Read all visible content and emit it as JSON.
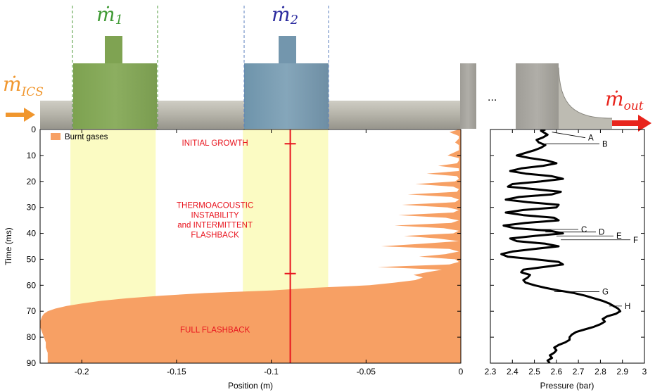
{
  "header": {
    "inlet_label": "ṁ",
    "inlet_sub": "ICS",
    "injector1_label": "ṁ",
    "injector1_sub": "1",
    "injector2_label": "ṁ",
    "injector2_sub": "2",
    "outlet_label": "ṁ",
    "outlet_sub": "out",
    "ellipsis": "...",
    "colors": {
      "inlet": "#f0962d",
      "injector1": "#3f9a34",
      "injector2": "#2a2a9e",
      "outlet": "#e8251d",
      "pipe": "#b9b7ad",
      "block1": "#85a85a",
      "block2": "#7a9cb0",
      "flame": "#f7a064",
      "zone": "#fbfbc3",
      "marker": "#e8141e"
    }
  },
  "chart_data": [
    {
      "type": "area",
      "legend": [
        "Burnt gases"
      ],
      "legend_position": "top-left",
      "xlabel": "Position (m)",
      "ylabel": "Time (ms)",
      "xlim": [
        -0.222,
        0
      ],
      "ylim": [
        90,
        0
      ],
      "x_ticks": [
        -0.2,
        -0.15,
        -0.1,
        -0.05,
        0
      ],
      "x_tick_labels": [
        "-0.2",
        "-0.15",
        "-0.1",
        "-0.05",
        "0"
      ],
      "y_ticks": [
        0,
        10,
        20,
        30,
        40,
        50,
        60,
        70,
        80,
        90
      ],
      "y_tick_labels": [
        "0",
        "10",
        "20",
        "30",
        "40",
        "50",
        "60",
        "70",
        "80",
        "90"
      ],
      "injector_zones": [
        [
          -0.206,
          -0.161
        ],
        [
          -0.115,
          -0.07
        ]
      ],
      "phase_marker": {
        "x": -0.09,
        "ticks": [
          5.5,
          55.5
        ]
      },
      "annotations": [
        {
          "text": [
            "INITIAL GROWTH"
          ],
          "x": -0.1,
          "y": 3
        },
        {
          "text": [
            "THERMOACOUSTIC",
            "INSTABILITY",
            "and INTERMITTENT",
            "FLASHBACK"
          ],
          "x": -0.1,
          "y": 27
        },
        {
          "text": [
            "FULL FLASHBACK"
          ],
          "x": -0.1,
          "y": 75
        }
      ],
      "flame_front": {
        "time_ms": [
          0,
          1,
          2.5,
          3.5,
          5,
          6,
          7,
          8,
          10,
          11,
          12,
          13,
          14,
          15,
          16,
          17,
          18,
          19,
          20,
          21,
          22,
          23,
          24,
          25,
          26,
          27,
          28,
          29,
          30,
          31,
          32,
          33,
          34,
          35,
          36,
          37,
          38,
          39,
          40,
          41,
          42,
          43,
          44,
          45,
          46,
          47,
          48,
          49,
          50,
          51,
          52,
          53,
          54,
          55,
          56,
          57,
          58,
          59,
          60,
          61,
          62,
          63,
          64,
          65,
          66,
          67,
          68,
          69,
          70,
          71,
          72,
          74,
          76,
          78,
          80,
          82,
          84,
          86,
          88,
          90
        ],
        "position_m": [
          -0.001,
          -0.006,
          -0.001,
          -0.001,
          -0.003,
          -0.001,
          -0.001,
          -0.001,
          -0.007,
          -0.001,
          -0.001,
          -0.002,
          -0.012,
          -0.001,
          -0.001,
          -0.018,
          -0.002,
          -0.001,
          -0.003,
          -0.024,
          -0.004,
          -0.001,
          -0.002,
          -0.028,
          -0.005,
          -0.001,
          -0.003,
          -0.031,
          -0.007,
          -0.001,
          -0.004,
          -0.033,
          -0.008,
          -0.001,
          -0.005,
          -0.035,
          -0.009,
          -0.001,
          -0.004,
          -0.03,
          -0.012,
          -0.001,
          -0.02,
          -0.042,
          -0.006,
          -0.001,
          -0.008,
          -0.022,
          -0.003,
          -0.001,
          -0.006,
          -0.044,
          -0.01,
          -0.018,
          -0.025,
          -0.02,
          -0.024,
          -0.035,
          -0.048,
          -0.078,
          -0.1,
          -0.135,
          -0.158,
          -0.176,
          -0.19,
          -0.2,
          -0.208,
          -0.214,
          -0.218,
          -0.22,
          -0.221,
          -0.222,
          -0.222,
          -0.221,
          -0.22,
          -0.219,
          -0.219,
          -0.218,
          -0.218,
          -0.218
        ]
      }
    },
    {
      "type": "line",
      "xlabel": "Pressure (bar)",
      "xlim": [
        2.3,
        3
      ],
      "ylim": [
        90,
        0
      ],
      "x_ticks": [
        2.3,
        2.4,
        2.5,
        2.6,
        2.7,
        2.8,
        2.9,
        3
      ],
      "x_tick_labels": [
        "2.3",
        "2.4",
        "2.5",
        "2.6",
        "2.7",
        "2.8",
        "2.9",
        "3"
      ],
      "series": [
        {
          "time_ms": [
            0,
            0.5,
            1,
            2,
            3,
            4,
            5,
            6,
            7,
            8,
            9,
            10,
            11,
            12,
            13,
            14,
            15,
            16,
            17,
            18,
            19,
            20,
            21,
            22,
            23,
            24,
            25,
            26,
            27,
            28,
            29,
            30,
            31,
            32,
            33,
            34,
            35,
            36,
            37,
            38,
            39,
            40,
            41,
            42,
            43,
            44,
            45,
            46,
            47,
            48,
            49,
            50,
            51,
            52,
            53,
            54,
            55,
            56,
            57,
            58,
            59,
            60,
            61,
            62,
            63,
            64,
            65,
            66,
            67,
            68,
            69,
            70,
            71,
            72,
            73,
            74,
            75,
            76,
            77,
            78,
            79,
            80,
            81,
            82,
            83,
            84,
            85,
            86,
            87,
            88,
            89,
            90
          ],
          "pressure_bar": [
            2.55,
            2.53,
            2.54,
            2.56,
            2.54,
            2.51,
            2.52,
            2.55,
            2.53,
            2.5,
            2.46,
            2.42,
            2.48,
            2.56,
            2.6,
            2.54,
            2.44,
            2.39,
            2.46,
            2.58,
            2.63,
            2.53,
            2.4,
            2.38,
            2.5,
            2.62,
            2.58,
            2.43,
            2.37,
            2.47,
            2.61,
            2.6,
            2.45,
            2.37,
            2.45,
            2.59,
            2.61,
            2.46,
            2.36,
            2.41,
            2.57,
            2.63,
            2.5,
            2.39,
            2.42,
            2.55,
            2.61,
            2.5,
            2.4,
            2.35,
            2.38,
            2.5,
            2.61,
            2.63,
            2.54,
            2.45,
            2.44,
            2.48,
            2.47,
            2.45,
            2.46,
            2.5,
            2.55,
            2.61,
            2.68,
            2.73,
            2.77,
            2.81,
            2.84,
            2.86,
            2.88,
            2.89,
            2.87,
            2.83,
            2.81,
            2.82,
            2.8,
            2.77,
            2.73,
            2.69,
            2.67,
            2.66,
            2.66,
            2.64,
            2.61,
            2.59,
            2.6,
            2.59,
            2.57,
            2.58,
            2.56,
            2.57
          ]
        }
      ],
      "markers": [
        {
          "label": "A",
          "time_ms": 1,
          "pressure_bar": 2.58
        },
        {
          "label": "B",
          "time_ms": 5.5,
          "pressure_bar": 2.55
        },
        {
          "label": "C",
          "time_ms": 38.5,
          "pressure_bar": 2.46
        },
        {
          "label": "D",
          "time_ms": 39.5,
          "pressure_bar": 2.55
        },
        {
          "label": "E",
          "time_ms": 41,
          "pressure_bar": 2.6
        },
        {
          "label": "F",
          "time_ms": 42.5,
          "pressure_bar": 2.62
        },
        {
          "label": "G",
          "time_ms": 62.5,
          "pressure_bar": 2.59
        },
        {
          "label": "H",
          "time_ms": 68,
          "pressure_bar": 2.84
        }
      ]
    }
  ]
}
